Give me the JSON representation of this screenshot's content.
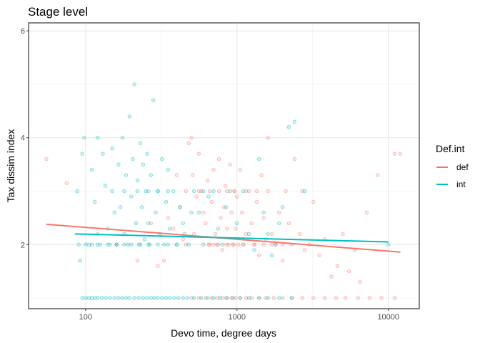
{
  "chart_data": {
    "type": "scatter",
    "title": "Stage level",
    "xlabel": "Devo time, degree days",
    "ylabel": "Tax dissim index",
    "x_scale": "log10",
    "xlim": [
      42,
      16000
    ],
    "ylim": [
      0.8,
      6.15
    ],
    "x_ticks": [
      100,
      1000,
      10000
    ],
    "x_tick_labels": [
      "100",
      "1000",
      "10000"
    ],
    "x_minor_ticks": [
      316.23,
      3162.3
    ],
    "y_ticks": [
      2,
      4,
      6
    ],
    "y_tick_labels": [
      "2",
      "4",
      "6"
    ],
    "y_minor_ticks": [
      1,
      3,
      5
    ],
    "grid": true,
    "legend": {
      "title": "Def.int",
      "position": "right"
    },
    "colors": {
      "def": "#F8766D",
      "int": "#00BFC4"
    },
    "series": [
      {
        "name": "def",
        "color": "#F8766D",
        "trend": {
          "x": [
            55,
            12000
          ],
          "y": [
            2.38,
            1.86
          ]
        },
        "points": [
          [
            55,
            3.6
          ],
          [
            75,
            3.15
          ],
          [
            120,
            2.2
          ],
          [
            160,
            2.0
          ],
          [
            220,
            1.7
          ],
          [
            270,
            2.4
          ],
          [
            300,
            1.6
          ],
          [
            330,
            1.7
          ],
          [
            350,
            2.5
          ],
          [
            380,
            2.3
          ],
          [
            400,
            3.3
          ],
          [
            420,
            2.7
          ],
          [
            440,
            2.1
          ],
          [
            460,
            2.0
          ],
          [
            480,
            3.9
          ],
          [
            500,
            4.0
          ],
          [
            510,
            3.3
          ],
          [
            520,
            2.2
          ],
          [
            540,
            2.9
          ],
          [
            560,
            3.7
          ],
          [
            580,
            3.0
          ],
          [
            600,
            2.6
          ],
          [
            620,
            2.4
          ],
          [
            640,
            3.2
          ],
          [
            660,
            2.0
          ],
          [
            680,
            2.8
          ],
          [
            700,
            3.4
          ],
          [
            720,
            2.2
          ],
          [
            740,
            2.0
          ],
          [
            760,
            3.6
          ],
          [
            780,
            2.5
          ],
          [
            800,
            1.9
          ],
          [
            820,
            2.7
          ],
          [
            840,
            3.1
          ],
          [
            860,
            2.3
          ],
          [
            880,
            2.0
          ],
          [
            900,
            3.5
          ],
          [
            920,
            2.6
          ],
          [
            940,
            2.0
          ],
          [
            960,
            3.0
          ],
          [
            980,
            2.3
          ],
          [
            1000,
            2.9
          ],
          [
            1020,
            2.0
          ],
          [
            1050,
            3.4
          ],
          [
            1080,
            2.6
          ],
          [
            1100,
            2.0
          ],
          [
            1150,
            2.2
          ],
          [
            1200,
            3.0
          ],
          [
            1250,
            2.4
          ],
          [
            1300,
            2.0
          ],
          [
            1350,
            2.8
          ],
          [
            1400,
            1.8
          ],
          [
            1450,
            3.3
          ],
          [
            1500,
            2.5
          ],
          [
            1550,
            2.1
          ],
          [
            1600,
            4.0
          ],
          [
            1700,
            2.2
          ],
          [
            1800,
            2.0
          ],
          [
            1900,
            2.6
          ],
          [
            2000,
            1.7
          ],
          [
            2100,
            3.0
          ],
          [
            2200,
            2.4
          ],
          [
            2300,
            2.0
          ],
          [
            2400,
            3.6
          ],
          [
            2600,
            2.2
          ],
          [
            2800,
            1.9
          ],
          [
            3000,
            2.0
          ],
          [
            3200,
            2.8
          ],
          [
            3500,
            1.8
          ],
          [
            3800,
            2.1
          ],
          [
            4200,
            1.4
          ],
          [
            4600,
            1.6
          ],
          [
            5000,
            2.2
          ],
          [
            5500,
            1.5
          ],
          [
            6000,
            1.9
          ],
          [
            6500,
            1.3
          ],
          [
            7200,
            2.6
          ],
          [
            8500,
            3.3
          ],
          [
            11000,
            3.7
          ],
          [
            12000,
            3.7
          ],
          [
            650,
            2.0
          ],
          [
            700,
            2.0
          ],
          [
            750,
            2.0
          ],
          [
            850,
            2.0
          ],
          [
            950,
            2.0
          ],
          [
            1100,
            2.0
          ],
          [
            1300,
            2.0
          ],
          [
            1500,
            2.0
          ],
          [
            1700,
            2.0
          ],
          [
            2000,
            2.0
          ],
          [
            460,
            3.0
          ],
          [
            560,
            3.0
          ],
          [
            660,
            3.0
          ],
          [
            760,
            3.0
          ],
          [
            860,
            3.0
          ],
          [
            960,
            3.0
          ],
          [
            1150,
            3.0
          ],
          [
            1350,
            3.0
          ],
          [
            1600,
            3.0
          ],
          [
            2700,
            3.0
          ],
          [
            500,
            1.0
          ],
          [
            560,
            1.0
          ],
          [
            620,
            1.0
          ],
          [
            680,
            1.0
          ],
          [
            740,
            1.0
          ],
          [
            800,
            1.0
          ],
          [
            860,
            1.0
          ],
          [
            920,
            1.0
          ],
          [
            980,
            1.0
          ],
          [
            1050,
            1.0
          ],
          [
            1150,
            1.0
          ],
          [
            1250,
            1.0
          ],
          [
            1400,
            1.0
          ],
          [
            1550,
            1.0
          ],
          [
            1750,
            1.0
          ],
          [
            2000,
            1.0
          ],
          [
            2300,
            1.0
          ],
          [
            2700,
            1.0
          ],
          [
            3200,
            1.0
          ],
          [
            3800,
            1.0
          ],
          [
            4500,
            1.0
          ],
          [
            5200,
            1.0
          ],
          [
            6300,
            1.0
          ],
          [
            7500,
            1.0
          ],
          [
            9000,
            1.0
          ],
          [
            11000,
            1.0
          ]
        ]
      },
      {
        "name": "int",
        "color": "#00BFC4",
        "trend": {
          "x": [
            85,
            10000
          ],
          "y": [
            2.2,
            2.05
          ]
        },
        "points": [
          [
            88,
            3.0
          ],
          [
            90,
            2.0
          ],
          [
            92,
            1.7
          ],
          [
            95,
            3.7
          ],
          [
            98,
            4.0
          ],
          [
            105,
            2.0
          ],
          [
            110,
            3.4
          ],
          [
            115,
            2.8
          ],
          [
            120,
            4.0
          ],
          [
            125,
            2.0
          ],
          [
            130,
            3.7
          ],
          [
            135,
            3.1
          ],
          [
            140,
            2.3
          ],
          [
            145,
            2.0
          ],
          [
            150,
            3.8
          ],
          [
            155,
            2.6
          ],
          [
            160,
            2.0
          ],
          [
            165,
            3.5
          ],
          [
            170,
            2.7
          ],
          [
            175,
            4.0
          ],
          [
            180,
            2.2
          ],
          [
            185,
            3.3
          ],
          [
            190,
            2.0
          ],
          [
            195,
            4.4
          ],
          [
            200,
            2.9
          ],
          [
            205,
            3.6
          ],
          [
            210,
            5.0
          ],
          [
            215,
            2.4
          ],
          [
            220,
            3.2
          ],
          [
            225,
            2.0
          ],
          [
            230,
            3.9
          ],
          [
            235,
            2.7
          ],
          [
            240,
            3.5
          ],
          [
            245,
            2.1
          ],
          [
            250,
            3.0
          ],
          [
            255,
            3.7
          ],
          [
            260,
            2.4
          ],
          [
            265,
            2.0
          ],
          [
            270,
            3.3
          ],
          [
            280,
            4.7
          ],
          [
            290,
            2.6
          ],
          [
            300,
            3.0
          ],
          [
            310,
            2.2
          ],
          [
            320,
            3.6
          ],
          [
            330,
            2.0
          ],
          [
            340,
            2.8
          ],
          [
            350,
            3.4
          ],
          [
            360,
            2.3
          ],
          [
            380,
            3.0
          ],
          [
            400,
            2.0
          ],
          [
            420,
            2.7
          ],
          [
            450,
            2.2
          ],
          [
            480,
            2.0
          ],
          [
            520,
            3.0
          ],
          [
            560,
            2.6
          ],
          [
            600,
            2.0
          ],
          [
            650,
            2.9
          ],
          [
            700,
            3.0
          ],
          [
            750,
            2.3
          ],
          [
            800,
            2.0
          ],
          [
            850,
            2.7
          ],
          [
            900,
            3.0
          ],
          [
            1000,
            2.4
          ],
          [
            1100,
            3.0
          ],
          [
            1200,
            2.2
          ],
          [
            1300,
            1.9
          ],
          [
            1400,
            3.6
          ],
          [
            1500,
            2.6
          ],
          [
            1600,
            2.2
          ],
          [
            1800,
            2.0
          ],
          [
            2000,
            2.7
          ],
          [
            2200,
            4.2
          ],
          [
            2400,
            4.3
          ],
          [
            2800,
            3.0
          ],
          [
            10000,
            2.0
          ],
          [
            1700,
            1.8
          ],
          [
            1900,
            2.4
          ],
          [
            600,
            3.0
          ],
          [
            500,
            2.6
          ],
          [
            440,
            2.4
          ],
          [
            100,
            2.0
          ],
          [
            110,
            2.0
          ],
          [
            120,
            2.0
          ],
          [
            140,
            2.0
          ],
          [
            160,
            2.0
          ],
          [
            180,
            2.0
          ],
          [
            200,
            2.0
          ],
          [
            230,
            2.0
          ],
          [
            260,
            2.0
          ],
          [
            300,
            2.0
          ],
          [
            350,
            2.0
          ],
          [
            400,
            2.0
          ],
          [
            150,
            3.0
          ],
          [
            180,
            3.0
          ],
          [
            220,
            3.0
          ],
          [
            260,
            3.0
          ],
          [
            300,
            3.0
          ],
          [
            350,
            3.0
          ],
          [
            95,
            1.0
          ],
          [
            100,
            1.0
          ],
          [
            105,
            1.0
          ],
          [
            110,
            1.0
          ],
          [
            115,
            1.0
          ],
          [
            120,
            1.0
          ],
          [
            128,
            1.0
          ],
          [
            136,
            1.0
          ],
          [
            145,
            1.0
          ],
          [
            155,
            1.0
          ],
          [
            165,
            1.0
          ],
          [
            175,
            1.0
          ],
          [
            185,
            1.0
          ],
          [
            195,
            1.0
          ],
          [
            210,
            1.0
          ],
          [
            225,
            1.0
          ],
          [
            240,
            1.0
          ],
          [
            255,
            1.0
          ],
          [
            270,
            1.0
          ],
          [
            285,
            1.0
          ],
          [
            300,
            1.0
          ],
          [
            320,
            1.0
          ],
          [
            340,
            1.0
          ],
          [
            360,
            1.0
          ],
          [
            385,
            1.0
          ],
          [
            410,
            1.0
          ],
          [
            440,
            1.0
          ],
          [
            470,
            1.0
          ],
          [
            520,
            1.0
          ],
          [
            580,
            1.0
          ],
          [
            640,
            1.0
          ],
          [
            700,
            1.0
          ],
          [
            770,
            1.0
          ],
          [
            850,
            1.0
          ],
          [
            940,
            1.0
          ],
          [
            1050,
            1.0
          ],
          [
            1200,
            1.0
          ],
          [
            1400,
            1.0
          ],
          [
            1600,
            1.0
          ],
          [
            1900,
            1.0
          ],
          [
            2300,
            1.0
          ]
        ]
      }
    ]
  }
}
